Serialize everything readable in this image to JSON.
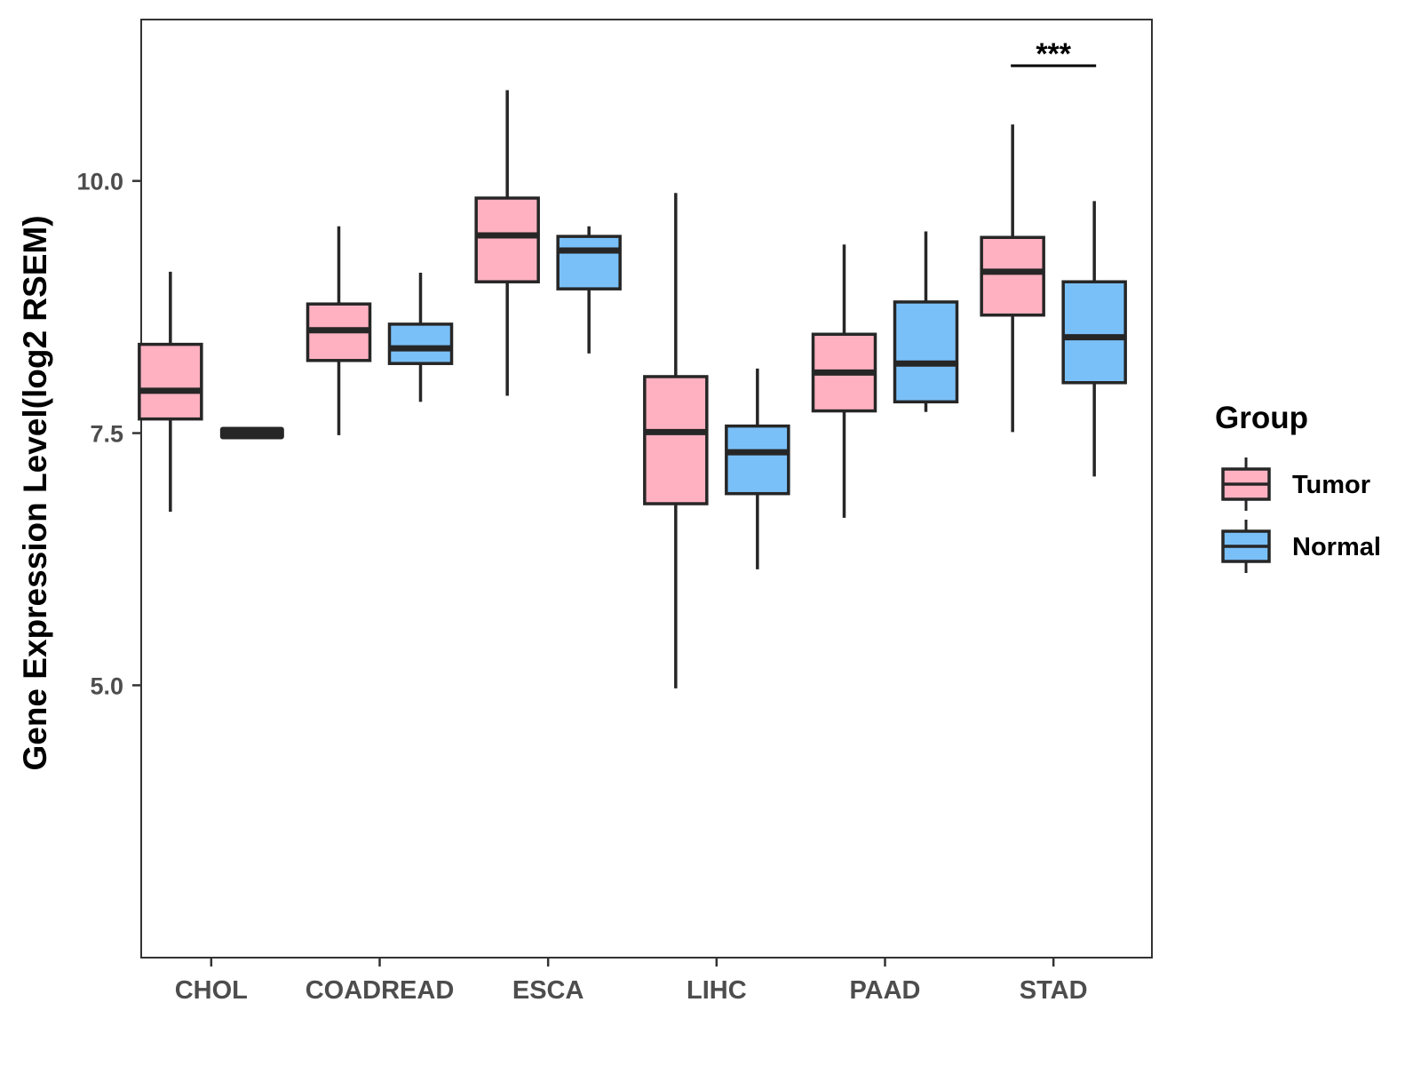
{
  "chart_data": {
    "type": "box",
    "title": "",
    "xlabel": "",
    "ylabel": "Gene Expression Level(log2 RSEM)",
    "ylim": [
      2.3,
      11.6
    ],
    "yticks": [
      5.0,
      7.5,
      10.0
    ],
    "ytick_labels": [
      "5.0",
      "7.5",
      "10.0"
    ],
    "grid": false,
    "categories": [
      "CHOL",
      "COADREAD",
      "ESCA",
      "LIHC",
      "PAAD",
      "STAD"
    ],
    "legend": {
      "title": "Group",
      "position": "right",
      "entries": [
        "Tumor",
        "Normal"
      ]
    },
    "series": [
      {
        "name": "Tumor",
        "color": "#FFB1C1",
        "boxes": [
          {
            "whisker_low": 6.72,
            "q1": 7.64,
            "median": 7.92,
            "q3": 8.38,
            "whisker_high": 9.1
          },
          {
            "whisker_low": 7.48,
            "q1": 8.22,
            "median": 8.52,
            "q3": 8.78,
            "whisker_high": 9.55
          },
          {
            "whisker_low": 7.87,
            "q1": 9.0,
            "median": 9.46,
            "q3": 9.83,
            "whisker_high": 10.9
          },
          {
            "whisker_low": 4.97,
            "q1": 6.8,
            "median": 7.51,
            "q3": 8.06,
            "whisker_high": 9.88
          },
          {
            "whisker_low": 6.66,
            "q1": 7.72,
            "median": 8.1,
            "q3": 8.48,
            "whisker_high": 9.37
          },
          {
            "whisker_low": 7.51,
            "q1": 8.67,
            "median": 9.1,
            "q3": 9.44,
            "whisker_high": 10.56
          }
        ]
      },
      {
        "name": "Normal",
        "color": "#7AC0F8",
        "boxes": [
          {
            "whisker_low": 7.47,
            "q1": 7.47,
            "median": 7.5,
            "q3": 7.53,
            "whisker_high": 7.53
          },
          {
            "whisker_low": 7.81,
            "q1": 8.19,
            "median": 8.34,
            "q3": 8.58,
            "whisker_high": 9.09
          },
          {
            "whisker_low": 8.29,
            "q1": 8.93,
            "median": 9.31,
            "q3": 9.45,
            "whisker_high": 9.55
          },
          {
            "whisker_low": 6.15,
            "q1": 6.9,
            "median": 7.31,
            "q3": 7.57,
            "whisker_high": 8.14
          },
          {
            "whisker_low": 7.71,
            "q1": 7.81,
            "median": 8.19,
            "q3": 8.8,
            "whisker_high": 9.5
          },
          {
            "whisker_low": 7.07,
            "q1": 8.0,
            "median": 8.45,
            "q3": 9.0,
            "whisker_high": 9.8
          }
        ]
      }
    ],
    "annotations": [
      {
        "category": "STAD",
        "text": "***"
      }
    ]
  }
}
